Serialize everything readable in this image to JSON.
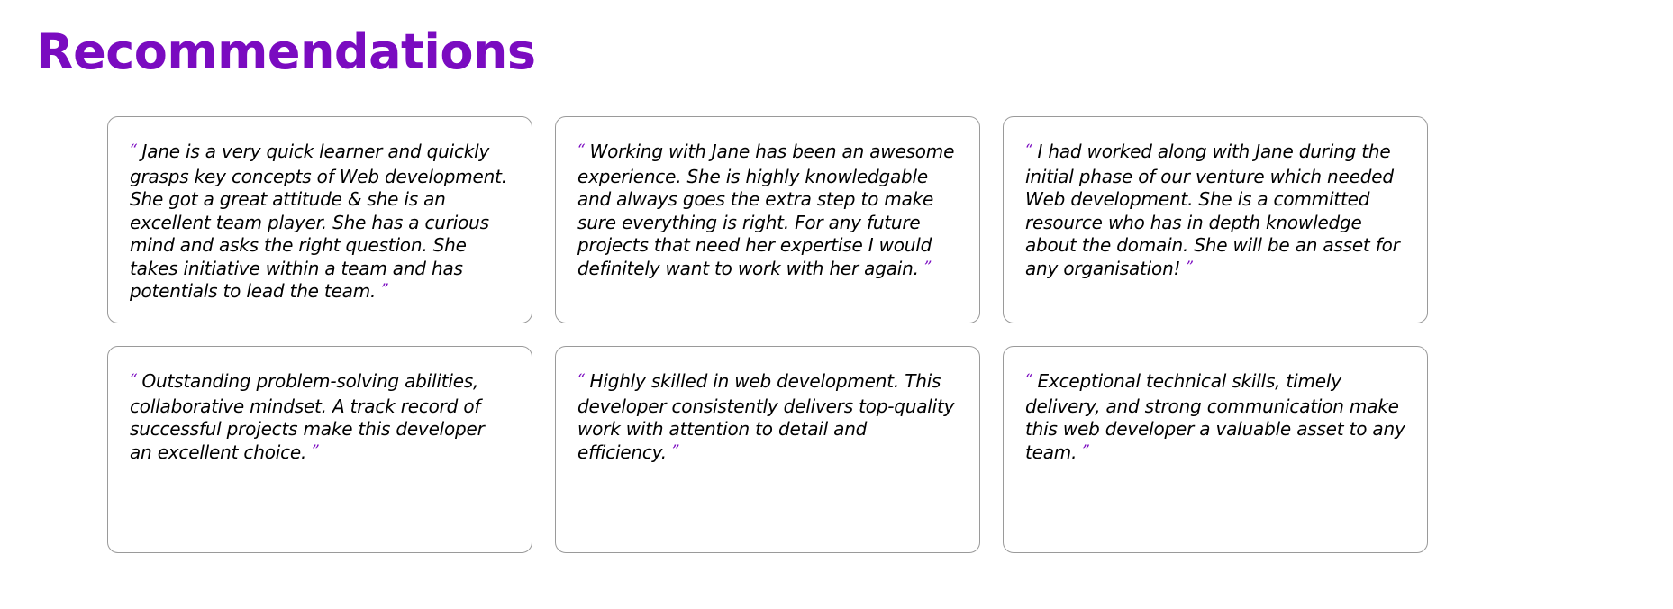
{
  "page": {
    "title": "Recommendations"
  },
  "colors": {
    "accent": "#7a0bc0",
    "text": "#000000",
    "card_border": "#9a9a9a"
  },
  "quote_marks": {
    "open": "“",
    "close": "”"
  },
  "recommendations": [
    {
      "text": "Jane is a very quick learner and quickly grasps key concepts of Web development. She got a great attitude & she is an excellent team player. She has a curious mind and asks the right question. She takes initiative within a team and has potentials to lead the team."
    },
    {
      "text": "Working with Jane has been an awesome experience. She is highly knowledgable and always goes the extra step to make sure everything is right. For any future projects that need her expertise I would definitely want to work with her again."
    },
    {
      "text": "I had worked along with Jane during the initial phase of our venture which needed Web development. She is a committed resource who has in depth knowledge about the domain. She will be an asset for any organisation!"
    },
    {
      "text": "Outstanding problem-solving abilities, collaborative mindset. A track record of successful projects make this developer an excellent choice."
    },
    {
      "text": "Highly skilled in web development. This developer consistently delivers top-quality work with attention to detail and efficiency."
    },
    {
      "text": "Exceptional technical skills, timely delivery, and strong communication make this web developer a valuable asset to any team."
    }
  ]
}
